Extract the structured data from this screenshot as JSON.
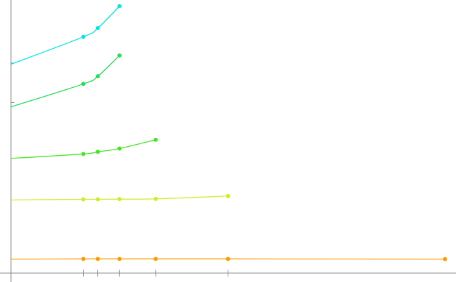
{
  "chart_data": {
    "type": "line",
    "title": "",
    "xlabel": "",
    "ylabel": "",
    "grid": false,
    "legend": "none",
    "xlim": [
      0,
      0.06
    ],
    "ylim": [
      0,
      1.2
    ],
    "series": [
      {
        "color": "#00e5e5",
        "points": [
          [
            0,
            0.935
          ],
          [
            0.01,
            1.06
          ],
          [
            0.012,
            1.1
          ],
          [
            0.015,
            1.2
          ]
        ]
      },
      {
        "color": "#22dd55",
        "points": [
          [
            0,
            0.74
          ],
          [
            0.01,
            0.845
          ],
          [
            0.012,
            0.88
          ],
          [
            0.015,
            0.975
          ]
        ]
      },
      {
        "color": "#44e622",
        "points": [
          [
            0,
            0.505
          ],
          [
            0.01,
            0.525
          ],
          [
            0.012,
            0.535
          ],
          [
            0.015,
            0.55
          ],
          [
            0.02,
            0.59
          ]
        ]
      },
      {
        "color": "#ccee22",
        "points": [
          [
            0,
            0.315
          ],
          [
            0.01,
            0.318
          ],
          [
            0.012,
            0.318
          ],
          [
            0.015,
            0.319
          ],
          [
            0.02,
            0.32
          ],
          [
            0.03,
            0.333
          ]
        ]
      },
      {
        "color": "#ff9900",
        "points": [
          [
            0,
            0.045
          ],
          [
            0.01,
            0.046
          ],
          [
            0.012,
            0.046
          ],
          [
            0.015,
            0.046
          ],
          [
            0.02,
            0.046
          ],
          [
            0.03,
            0.046
          ],
          [
            0.06,
            0.045
          ]
        ]
      }
    ],
    "x_ticks": [
      0.01,
      0.012,
      0.015,
      0.02,
      0.03
    ],
    "y_ticks": [
      0.94,
      0.76
    ]
  }
}
